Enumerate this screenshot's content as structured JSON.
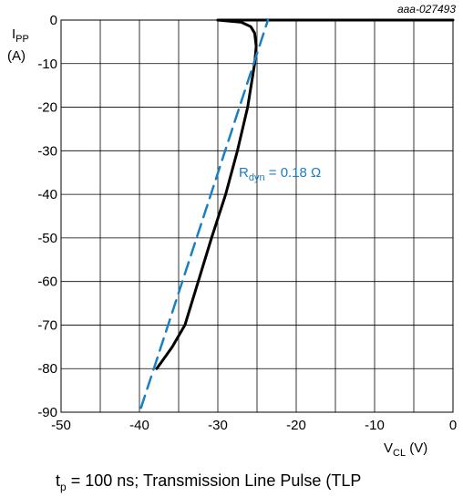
{
  "chart_data": {
    "type": "line",
    "figure_id": "aaa-027493",
    "ylabel": {
      "main": "I",
      "sub": "PP",
      "unit": "(A)"
    },
    "xlabel": {
      "main": "V",
      "sub": "CL",
      "unit": " (V)"
    },
    "xlim": [
      -50,
      0
    ],
    "ylim": [
      -90,
      0
    ],
    "xticks": [
      -50,
      -40,
      -30,
      -20,
      -10,
      0
    ],
    "yticks": [
      0,
      -10,
      -20,
      -30,
      -40,
      -50,
      -60,
      -70,
      -80,
      -90
    ],
    "xtick_labels": [
      "-50",
      "-40",
      "-30",
      "-20",
      "-10",
      "0"
    ],
    "ytick_labels": [
      "0",
      "-10",
      "-20",
      "-30",
      "-40",
      "-50",
      "-60",
      "-70",
      "-80",
      "-90"
    ],
    "grid": true,
    "series": [
      {
        "color": "#000000",
        "x": [
          -30,
          -27,
          -25.8,
          -25.3,
          -25.1,
          -25.3,
          -26.2,
          -27.5,
          -29.0,
          -30.8,
          -32.5,
          -34.2,
          -35.8,
          -37.0,
          -37.8
        ],
        "y": [
          0,
          -0.5,
          -1.5,
          -3.0,
          -6.0,
          -10,
          -20,
          -30,
          -40,
          -50,
          -60,
          -70,
          -75,
          -78,
          -80
        ]
      },
      {
        "color": "#000000",
        "x": [
          -30,
          0
        ],
        "y": [
          0,
          0
        ]
      },
      {
        "color": "#1a7fc1",
        "dashed": true,
        "x": [
          -39.8,
          -23.6
        ],
        "y": [
          -89,
          0
        ]
      }
    ],
    "annotation": {
      "main": "R",
      "sub": "dyn",
      "rest": " = 0.18 Ω",
      "color": "#1a7fc1"
    },
    "condition": {
      "pre": "t",
      "sub": "p",
      "rest": " = 100 ns; Transmission Line Pulse (TLP"
    }
  }
}
